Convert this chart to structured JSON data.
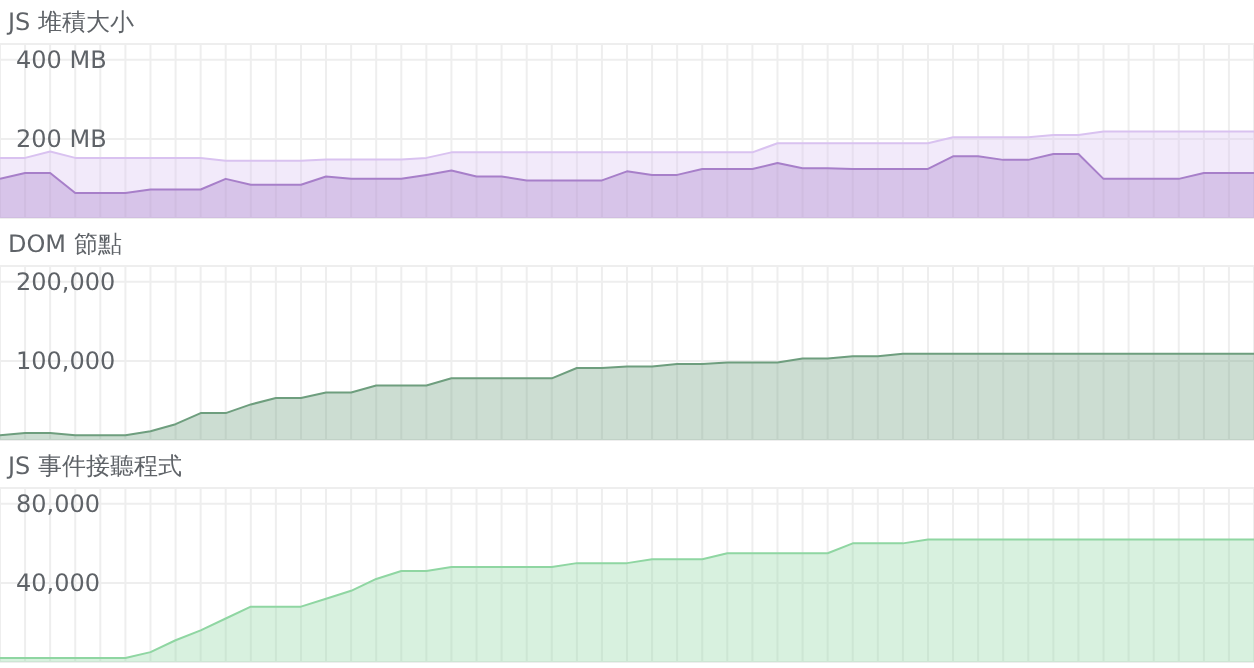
{
  "chart_data": [
    {
      "type": "area",
      "title": "JS 堆積大小",
      "categories": [
        null,
        null,
        null,
        null,
        null,
        null,
        null,
        null,
        null,
        null,
        null,
        null,
        null,
        null,
        null,
        null,
        null,
        null,
        null,
        null,
        null,
        null,
        null,
        null,
        null,
        null,
        null,
        null,
        null,
        null,
        null,
        null,
        null,
        null,
        null,
        null,
        null,
        null,
        null,
        null,
        null,
        null,
        null,
        null,
        null,
        null,
        null,
        null,
        null,
        null,
        null
      ],
      "ylim": [
        0,
        440
      ],
      "yticks": [
        {
          "value": 200,
          "label": "200 MB"
        },
        {
          "value": 400,
          "label": "400 MB"
        }
      ],
      "grid": true,
      "series": [
        {
          "color": "#d9c2f0",
          "values": [
            152,
            152,
            168,
            152,
            152,
            152,
            152,
            152,
            152,
            145,
            145,
            145,
            145,
            148,
            148,
            148,
            148,
            152,
            166,
            166,
            166,
            166,
            166,
            166,
            166,
            166,
            166,
            166,
            166,
            166,
            166,
            189,
            189,
            189,
            189,
            189,
            189,
            189,
            204,
            204,
            204,
            204,
            210,
            210,
            219,
            219,
            219,
            219,
            219,
            219,
            219
          ]
        },
        {
          "color": "#a77fc9",
          "values": [
            99,
            114,
            114,
            63,
            63,
            63,
            72,
            72,
            72,
            99,
            84,
            84,
            84,
            105,
            99,
            99,
            99,
            109,
            120,
            105,
            105,
            95,
            95,
            95,
            95,
            118,
            109,
            109,
            124,
            124,
            124,
            139,
            126,
            126,
            124,
            124,
            124,
            124,
            156,
            156,
            147,
            147,
            162,
            162,
            99,
            99,
            99,
            99,
            114,
            114,
            114
          ]
        }
      ]
    },
    {
      "type": "area",
      "title": "DOM 節點",
      "categories": [
        null,
        null,
        null,
        null,
        null,
        null,
        null,
        null,
        null,
        null,
        null,
        null,
        null,
        null,
        null,
        null,
        null,
        null,
        null,
        null,
        null,
        null,
        null,
        null,
        null,
        null,
        null,
        null,
        null,
        null,
        null,
        null,
        null,
        null,
        null,
        null,
        null,
        null,
        null,
        null,
        null,
        null,
        null,
        null,
        null,
        null,
        null,
        null,
        null,
        null,
        null
      ],
      "ylim": [
        0,
        220000
      ],
      "yticks": [
        {
          "value": 100000,
          "label": "100,000"
        },
        {
          "value": 200000,
          "label": "200,000"
        }
      ],
      "grid": true,
      "series": [
        {
          "color": "#6e9e7e",
          "values": [
            6000,
            9000,
            9000,
            6000,
            6000,
            6000,
            11000,
            20000,
            34000,
            34000,
            45000,
            53000,
            53000,
            60000,
            60000,
            69000,
            69000,
            69000,
            78000,
            78000,
            78000,
            78000,
            78000,
            91000,
            91000,
            93000,
            93000,
            96000,
            96000,
            98000,
            98000,
            98000,
            103000,
            103000,
            106000,
            106000,
            109000,
            109000,
            109000,
            109000,
            109000,
            109000,
            109000,
            109000,
            109000,
            109000,
            109000,
            109000,
            109000,
            109000,
            109000
          ]
        }
      ]
    },
    {
      "type": "area",
      "title": "JS 事件接聽程式",
      "categories": [
        null,
        null,
        null,
        null,
        null,
        null,
        null,
        null,
        null,
        null,
        null,
        null,
        null,
        null,
        null,
        null,
        null,
        null,
        null,
        null,
        null,
        null,
        null,
        null,
        null,
        null,
        null,
        null,
        null,
        null,
        null,
        null,
        null,
        null,
        null,
        null,
        null,
        null,
        null,
        null,
        null,
        null,
        null,
        null,
        null,
        null,
        null,
        null,
        null,
        null,
        null
      ],
      "ylim": [
        0,
        88000
      ],
      "yticks": [
        {
          "value": 40000,
          "label": "40,000"
        },
        {
          "value": 80000,
          "label": "80,000"
        }
      ],
      "grid": true,
      "series": [
        {
          "color": "#8fd6a2",
          "values": [
            2000,
            2000,
            2000,
            2000,
            2000,
            2000,
            5000,
            11000,
            16000,
            22000,
            28000,
            28000,
            28000,
            32000,
            36000,
            42000,
            46000,
            46000,
            48000,
            48000,
            48000,
            48000,
            48000,
            50000,
            50000,
            50000,
            52000,
            52000,
            52000,
            55000,
            55000,
            55000,
            55000,
            55000,
            60000,
            60000,
            60000,
            62000,
            62000,
            62000,
            62000,
            62000,
            62000,
            62000,
            62000,
            62000,
            62000,
            62000,
            62000,
            62000,
            62000
          ]
        }
      ]
    }
  ]
}
